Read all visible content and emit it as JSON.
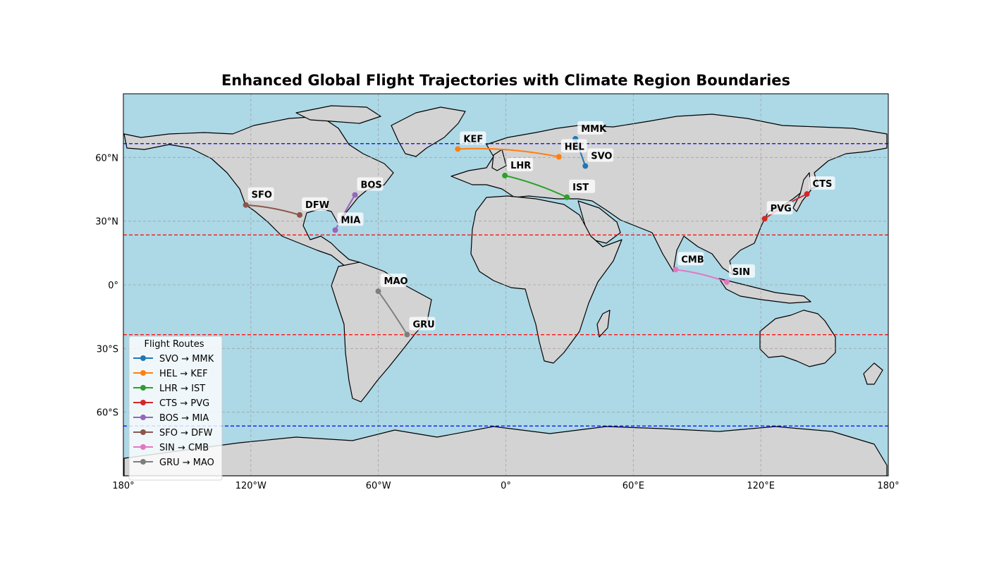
{
  "title": "Enhanced Global Flight Trajectories with Climate Region Boundaries",
  "axes": {
    "x_ticks": [
      {
        "lon": -180,
        "label": "180°"
      },
      {
        "lon": -120,
        "label": "120°W"
      },
      {
        "lon": -60,
        "label": "60°W"
      },
      {
        "lon": 0,
        "label": "0°"
      },
      {
        "lon": 60,
        "label": "60°E"
      },
      {
        "lon": 120,
        "label": "120°E"
      },
      {
        "lon": 180,
        "label": "180°"
      }
    ],
    "y_ticks": [
      {
        "lat": 60,
        "label": "60°N"
      },
      {
        "lat": 30,
        "label": "30°N"
      },
      {
        "lat": 0,
        "label": "0°"
      },
      {
        "lat": -30,
        "label": "30°S"
      },
      {
        "lat": -60,
        "label": "60°S"
      }
    ],
    "lon_range": [
      -180,
      180
    ],
    "lat_range": [
      -90,
      90
    ]
  },
  "colors": {
    "ocean": "#add8e6",
    "land": "#d3d3d3",
    "coast": "#000000",
    "arctic_line": "#0000ff",
    "tropic_line": "#ff0000",
    "grid": "#999999"
  },
  "climate_boundaries": [
    {
      "lat": 66.5,
      "color": "#0000ff"
    },
    {
      "lat": 23.5,
      "color": "#ff0000"
    },
    {
      "lat": -23.5,
      "color": "#ff0000"
    },
    {
      "lat": -66.5,
      "color": "#0000ff"
    }
  ],
  "airports": {
    "SVO": {
      "lat": 55.97,
      "lon": 37.41
    },
    "MMK": {
      "lat": 68.78,
      "lon": 32.75
    },
    "HEL": {
      "lat": 60.32,
      "lon": 24.96
    },
    "KEF": {
      "lat": 63.98,
      "lon": -22.6
    },
    "LHR": {
      "lat": 51.47,
      "lon": -0.45
    },
    "IST": {
      "lat": 41.26,
      "lon": 28.74
    },
    "CTS": {
      "lat": 42.78,
      "lon": 141.69
    },
    "PVG": {
      "lat": 31.14,
      "lon": 121.8
    },
    "BOS": {
      "lat": 42.36,
      "lon": -71.01
    },
    "MIA": {
      "lat": 25.79,
      "lon": -80.29
    },
    "SFO": {
      "lat": 37.62,
      "lon": -122.38
    },
    "DFW": {
      "lat": 32.9,
      "lon": -97.04
    },
    "SIN": {
      "lat": 1.36,
      "lon": 103.99
    },
    "CMB": {
      "lat": 7.18,
      "lon": 79.88
    },
    "GRU": {
      "lat": -23.43,
      "lon": -46.47
    },
    "MAO": {
      "lat": -3.04,
      "lon": -60.05
    }
  },
  "routes": [
    {
      "label": "SVO → MMK",
      "from": "SVO",
      "to": "MMK",
      "color": "#1f77b4"
    },
    {
      "label": "HEL → KEF",
      "from": "HEL",
      "to": "KEF",
      "color": "#ff7f0e"
    },
    {
      "label": "LHR → IST",
      "from": "LHR",
      "to": "IST",
      "color": "#2ca02c"
    },
    {
      "label": "CTS → PVG",
      "from": "CTS",
      "to": "PVG",
      "color": "#d62728"
    },
    {
      "label": "BOS → MIA",
      "from": "BOS",
      "to": "MIA",
      "color": "#9467bd"
    },
    {
      "label": "SFO → DFW",
      "from": "SFO",
      "to": "DFW",
      "color": "#8c564b"
    },
    {
      "label": "SIN → CMB",
      "from": "SIN",
      "to": "CMB",
      "color": "#e377c2"
    },
    {
      "label": "GRU → MAO",
      "from": "GRU",
      "to": "MAO",
      "color": "#7f7f7f"
    }
  ],
  "legend": {
    "title": "Flight Routes",
    "position": "lower-left"
  }
}
